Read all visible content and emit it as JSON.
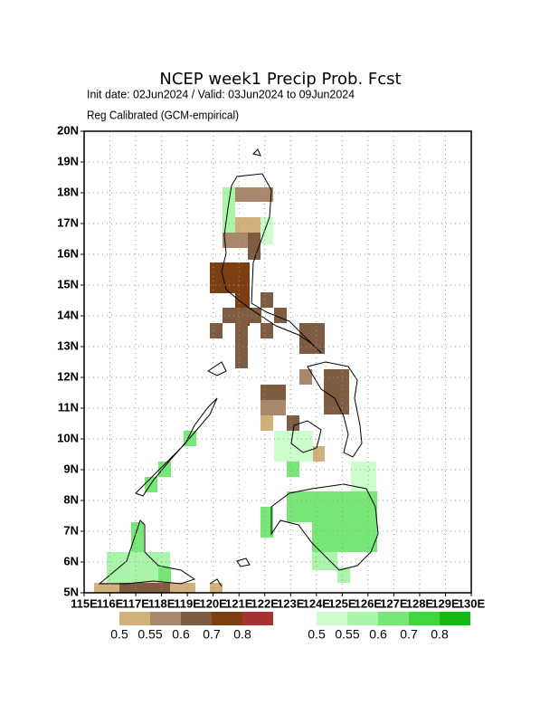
{
  "map": {
    "title": "NCEP week1 Precip Prob. Fcst",
    "subtitle": "Init date: 02Jun2024 / Valid: 03Jun2024 to 09Jun2024",
    "subtitle2": "Reg Calibrated (GCM-empirical)",
    "lon_range": [
      115,
      130
    ],
    "lat_range": [
      5,
      20
    ],
    "lon_ticks": [
      {
        "value": 115,
        "label": "115E"
      },
      {
        "value": 116,
        "label": "116E"
      },
      {
        "value": 117,
        "label": "117E"
      },
      {
        "value": 118,
        "label": "118E"
      },
      {
        "value": 119,
        "label": "119E"
      },
      {
        "value": 120,
        "label": "120E"
      },
      {
        "value": 121,
        "label": "121E"
      },
      {
        "value": 122,
        "label": "122E"
      },
      {
        "value": 123,
        "label": "123E"
      },
      {
        "value": 124,
        "label": "124E"
      },
      {
        "value": 125,
        "label": "125E"
      },
      {
        "value": 126,
        "label": "126E"
      },
      {
        "value": 127,
        "label": "127E"
      },
      {
        "value": 128,
        "label": "128E"
      },
      {
        "value": 129,
        "label": "129E"
      },
      {
        "value": 130,
        "label": "130E"
      }
    ],
    "lat_ticks": [
      {
        "value": 5,
        "label": "5N"
      },
      {
        "value": 6,
        "label": "6N"
      },
      {
        "value": 7,
        "label": "7N"
      },
      {
        "value": 8,
        "label": "8N"
      },
      {
        "value": 9,
        "label": "9N"
      },
      {
        "value": 10,
        "label": "10N"
      },
      {
        "value": 11,
        "label": "11N"
      },
      {
        "value": 12,
        "label": "12N"
      },
      {
        "value": 13,
        "label": "13N"
      },
      {
        "value": 14,
        "label": "14N"
      },
      {
        "value": 15,
        "label": "15N"
      },
      {
        "value": 16,
        "label": "16N"
      },
      {
        "value": 17,
        "label": "17N"
      },
      {
        "value": 18,
        "label": "18N"
      },
      {
        "value": 19,
        "label": "19N"
      },
      {
        "value": 20,
        "label": "20N"
      }
    ],
    "legend_dry": {
      "labels": [
        "0.5",
        "0.55",
        "0.6",
        "0.7",
        "0.8"
      ],
      "colors": [
        "#d2b07c",
        "#a8876a",
        "#7d5c42",
        "#7b3f12",
        "#a83232"
      ]
    },
    "legend_wet": {
      "labels": [
        "0.5",
        "0.55",
        "0.6",
        "0.7",
        "0.8"
      ],
      "colors": [
        "#ccffcc",
        "#aaf5aa",
        "#77e877",
        "#3fd63f",
        "#11bb11"
      ]
    }
  }
}
